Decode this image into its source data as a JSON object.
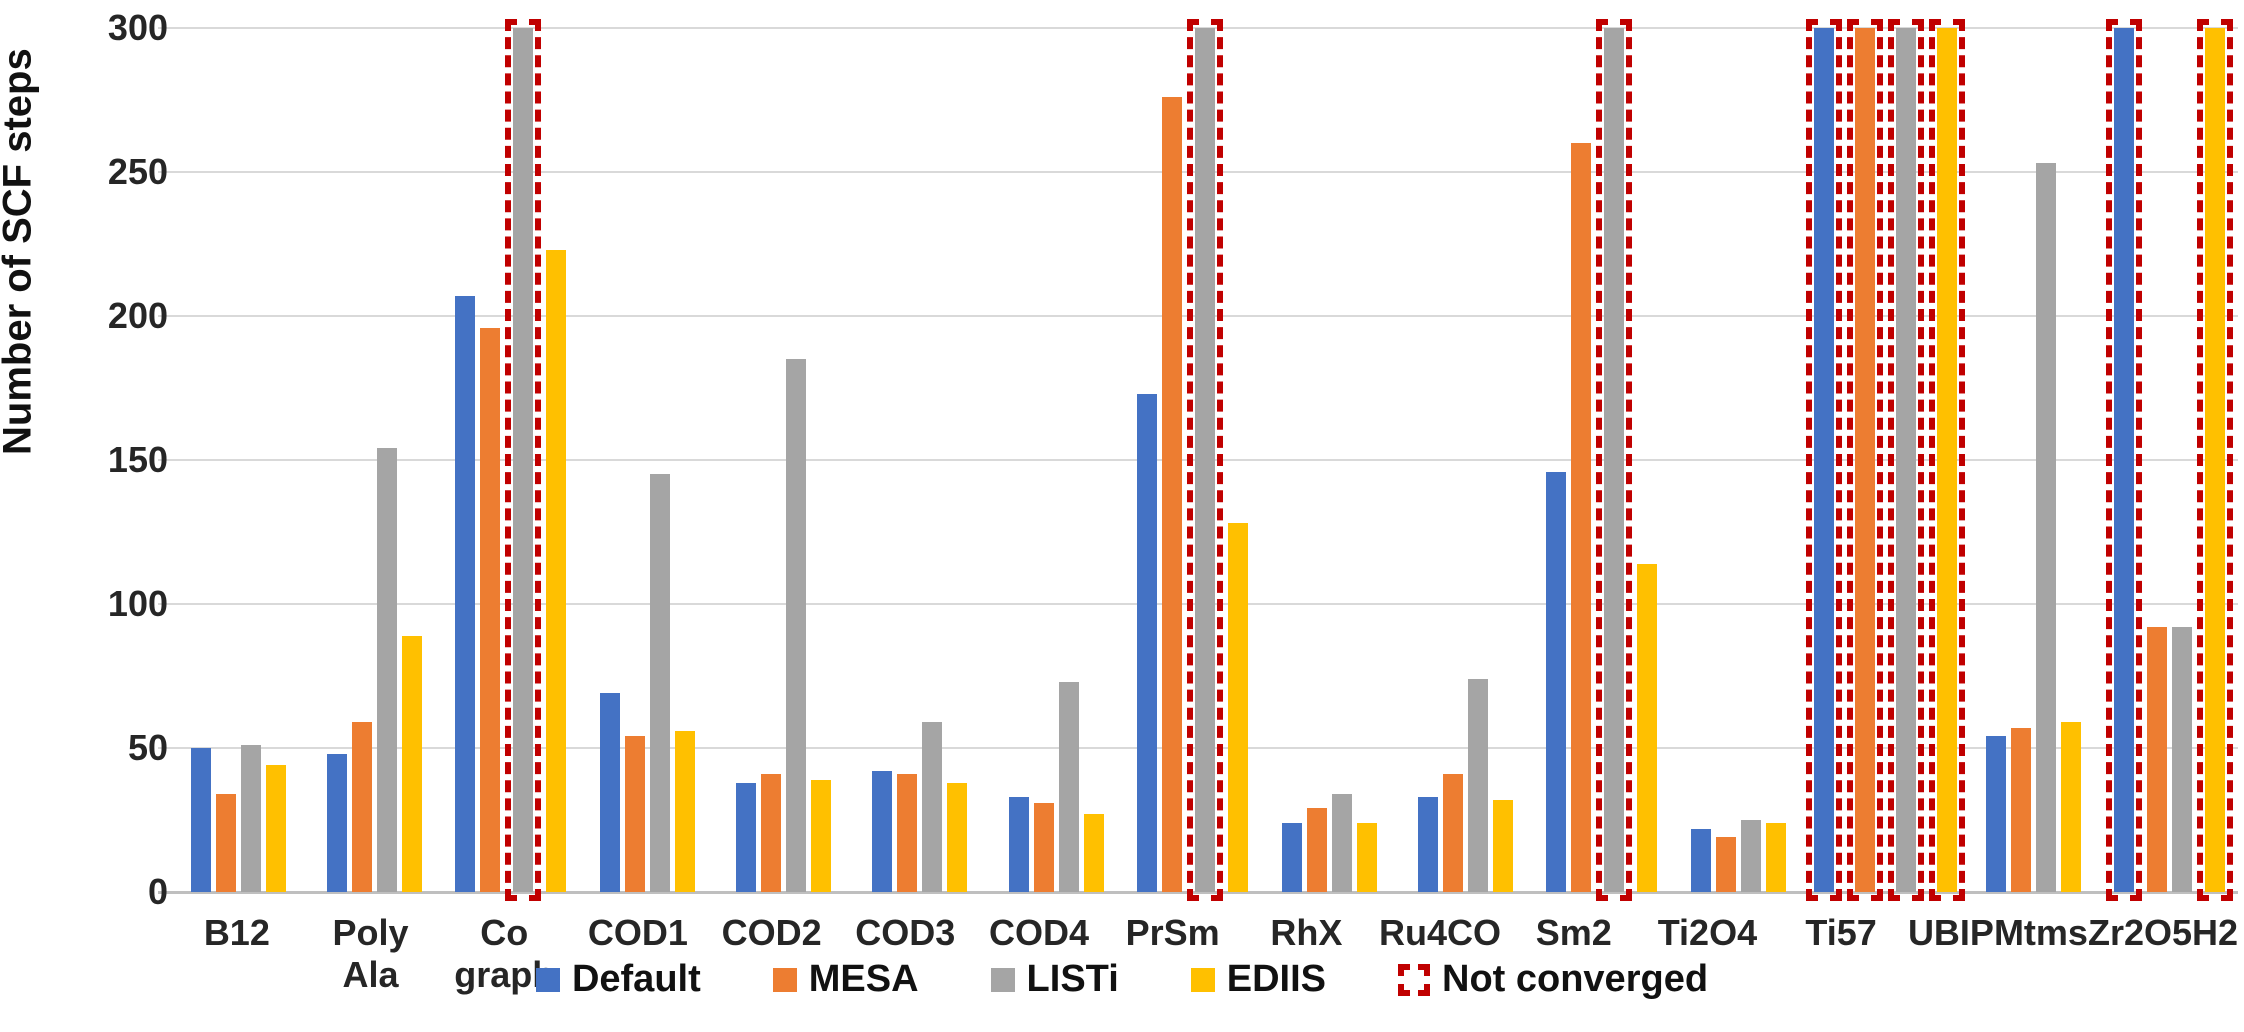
{
  "chart_data": {
    "type": "bar",
    "title": "",
    "ylabel": "Number of SCF steps",
    "xlabel": "",
    "ylim": [
      0,
      300
    ],
    "ytick_step": 50,
    "yticks": [
      0,
      50,
      100,
      150,
      200,
      250,
      300
    ],
    "grid": "horizontal",
    "legend_position": "bottom-center",
    "categories": [
      "B12",
      "Poly Ala",
      "Co graph",
      "COD1",
      "COD2",
      "COD3",
      "COD4",
      "PrSm",
      "RhX",
      "Ru4CO",
      "Sm2",
      "Ti2O4",
      "Ti57",
      "UBIPMtms",
      "Zr2O5H2"
    ],
    "series": [
      {
        "name": "Default",
        "color": "#4472C4",
        "values": [
          50,
          48,
          207,
          69,
          38,
          42,
          33,
          173,
          24,
          33,
          146,
          22,
          300,
          54,
          300
        ],
        "not_converged": [
          false,
          false,
          false,
          false,
          false,
          false,
          false,
          false,
          false,
          false,
          false,
          false,
          true,
          false,
          true
        ]
      },
      {
        "name": "MESA",
        "color": "#ED7D31",
        "values": [
          34,
          59,
          196,
          54,
          41,
          41,
          31,
          276,
          29,
          41,
          260,
          19,
          300,
          57,
          92
        ],
        "not_converged": [
          false,
          false,
          false,
          false,
          false,
          false,
          false,
          false,
          false,
          false,
          false,
          false,
          true,
          false,
          false
        ]
      },
      {
        "name": "LISTi",
        "color": "#A5A5A5",
        "values": [
          51,
          154,
          300,
          145,
          185,
          59,
          73,
          300,
          34,
          74,
          300,
          25,
          300,
          253,
          92
        ],
        "not_converged": [
          false,
          false,
          true,
          false,
          false,
          false,
          false,
          true,
          false,
          false,
          true,
          false,
          true,
          false,
          false
        ]
      },
      {
        "name": "EDIIS",
        "color": "#FFC000",
        "values": [
          44,
          89,
          223,
          56,
          39,
          38,
          27,
          128,
          24,
          32,
          114,
          24,
          300,
          59,
          300
        ],
        "not_converged": [
          false,
          false,
          false,
          false,
          false,
          false,
          false,
          false,
          false,
          false,
          false,
          false,
          true,
          false,
          true
        ]
      }
    ],
    "not_converged_legend": {
      "label": "Not converged",
      "border_color": "#C00000",
      "meaning": "bar capped at 300 with red dashed outline"
    }
  },
  "legend": {
    "items": [
      "Default",
      "MESA",
      "LISTi",
      "EDIIS",
      "Not converged"
    ]
  },
  "axis": {
    "y_title": "Number of SCF steps"
  },
  "colors": {
    "default_blue": "#4472C4",
    "mesa_orange": "#ED7D31",
    "listi_gray": "#A5A5A5",
    "ediis_yellow": "#FFC000",
    "not_converged_red": "#C00000",
    "gridline": "#D9D9D9",
    "axis_text": "#262626"
  }
}
